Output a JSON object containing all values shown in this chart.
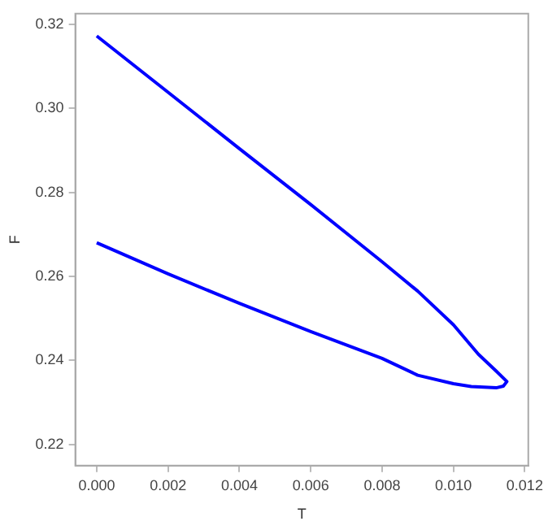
{
  "chart_data": {
    "type": "line",
    "xlabel": "T",
    "ylabel": "F",
    "xlim": [
      -0.0006,
      0.0121
    ],
    "ylim": [
      0.215,
      0.3225
    ],
    "xticks": [
      {
        "value": 0,
        "label": "0.000"
      },
      {
        "value": 0.002,
        "label": "0.002"
      },
      {
        "value": 0.004,
        "label": "0.004"
      },
      {
        "value": 0.006,
        "label": "0.006"
      },
      {
        "value": 0.008,
        "label": "0.008"
      },
      {
        "value": 0.01,
        "label": "0.010"
      },
      {
        "value": 0.012,
        "label": "0.012"
      }
    ],
    "yticks": [
      0.22,
      0.24,
      0.26,
      0.28,
      {
        "value": 0.3,
        "label": "0.30"
      },
      0.32
    ],
    "grid": false,
    "legend": false,
    "marker": "none",
    "line_style": "solid",
    "series": [
      {
        "color": "#0000ff",
        "x": [
          0,
          0.002,
          0.004,
          0.006,
          0.008,
          0.009,
          0.01,
          0.0107,
          0.0112,
          0.0115,
          0.0114,
          0.0112,
          0.0105,
          0.01,
          0.009,
          0.008,
          0.006,
          0.004,
          0.002,
          0
        ],
        "values": [
          0.3172,
          0.3038,
          0.2904,
          0.2771,
          0.2635,
          0.2565,
          0.2485,
          0.2415,
          0.2375,
          0.235,
          0.2339,
          0.2335,
          0.2338,
          0.2345,
          0.2365,
          0.2405,
          0.2469,
          0.2536,
          0.2606,
          0.268
        ]
      }
    ]
  }
}
